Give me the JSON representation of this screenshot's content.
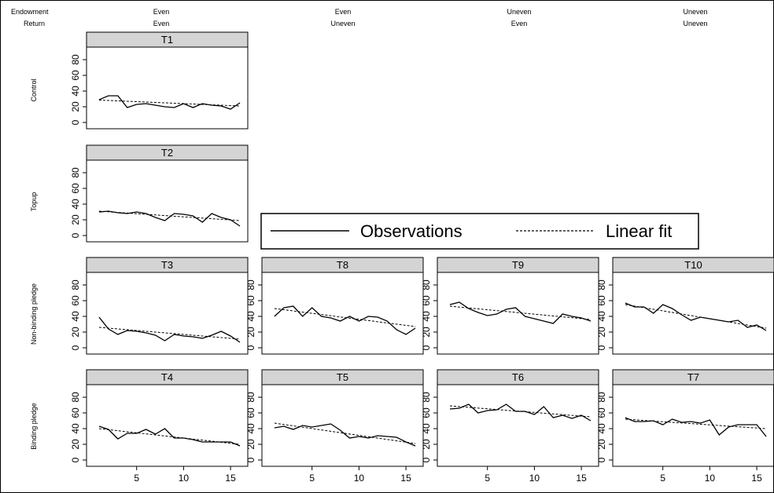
{
  "header": {
    "left_labels": [
      "Endowment",
      "Return"
    ],
    "columns": [
      {
        "endowment": "Even",
        "return": "Even"
      },
      {
        "endowment": "Even",
        "return": "Uneven"
      },
      {
        "endowment": "Uneven",
        "return": "Even"
      },
      {
        "endowment": "Uneven",
        "return": "Uneven"
      }
    ]
  },
  "rows": [
    "Control",
    "Topup",
    "Non-binding pledge",
    "Binding pledge"
  ],
  "legend": {
    "observations": "Observations",
    "linear_fit": "Linear fit",
    "placement": "middle-right"
  },
  "chart_data": {
    "type": "line",
    "x": [
      1,
      2,
      3,
      4,
      5,
      6,
      7,
      8,
      9,
      10,
      11,
      12,
      13,
      14,
      15,
      16
    ],
    "ylim": [
      0,
      88
    ],
    "xlim": [
      0,
      16.5
    ],
    "y_ticks": [
      0,
      20,
      40,
      60,
      80
    ],
    "x_ticks": [
      5,
      10,
      15
    ],
    "xlabel": "",
    "ylabel": "",
    "grid": false,
    "panels": [
      {
        "label": "T1",
        "row": 0,
        "col": 0,
        "observations": [
          29,
          34,
          34,
          19,
          23,
          24,
          22,
          20,
          19,
          24,
          19,
          24,
          22,
          21,
          17,
          25
        ],
        "fit": [
          28.5,
          21
        ]
      },
      {
        "label": "T2",
        "row": 1,
        "col": 0,
        "observations": [
          30,
          31,
          29,
          28,
          30,
          28,
          23,
          19,
          28,
          27,
          25,
          17,
          28,
          23,
          20,
          12
        ],
        "fit": [
          31,
          19
        ]
      },
      {
        "label": "T3",
        "row": 2,
        "col": 0,
        "observations": [
          39,
          24,
          17,
          22,
          21,
          19,
          16,
          9,
          17,
          15,
          14,
          12,
          16,
          21,
          15,
          7
        ],
        "fit": [
          26,
          11
        ]
      },
      {
        "label": "T8",
        "row": 2,
        "col": 1,
        "observations": [
          40,
          51,
          53,
          40,
          51,
          40,
          38,
          34,
          40,
          34,
          40,
          39,
          34,
          23,
          17,
          25
        ],
        "fit": [
          50,
          27
        ]
      },
      {
        "label": "T9",
        "row": 2,
        "col": 2,
        "observations": [
          55,
          58,
          50,
          45,
          41,
          43,
          49,
          51,
          40,
          37,
          34,
          31,
          43,
          40,
          38,
          34
        ],
        "fit": [
          53,
          36
        ]
      },
      {
        "label": "T10",
        "row": 2,
        "col": 3,
        "observations": [
          57,
          52,
          52,
          44,
          55,
          50,
          42,
          35,
          39,
          37,
          35,
          33,
          35,
          26,
          29,
          22
        ],
        "fit": [
          55,
          25
        ]
      },
      {
        "label": "T4",
        "row": 3,
        "col": 0,
        "observations": [
          43,
          39,
          27,
          34,
          34,
          39,
          33,
          40,
          28,
          28,
          26,
          23,
          23,
          23,
          23,
          18
        ],
        "fit": [
          40,
          20
        ]
      },
      {
        "label": "T5",
        "row": 3,
        "col": 1,
        "observations": [
          41,
          43,
          39,
          44,
          42,
          44,
          46,
          38,
          28,
          30,
          28,
          31,
          30,
          29,
          23,
          18
        ],
        "fit": [
          47,
          21
        ]
      },
      {
        "label": "T6",
        "row": 3,
        "col": 2,
        "observations": [
          65,
          66,
          71,
          60,
          63,
          64,
          71,
          62,
          62,
          58,
          68,
          54,
          57,
          53,
          57,
          50
        ],
        "fit": [
          69,
          55
        ]
      },
      {
        "label": "T7",
        "row": 3,
        "col": 3,
        "observations": [
          54,
          49,
          49,
          50,
          45,
          52,
          48,
          49,
          47,
          51,
          32,
          42,
          45,
          45,
          45,
          30
        ],
        "fit": [
          52,
          40
        ]
      }
    ]
  }
}
